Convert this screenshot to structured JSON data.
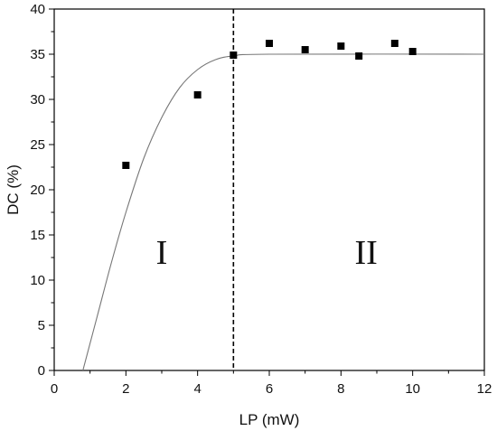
{
  "chart_data": {
    "type": "scatter",
    "xlabel": "LP (mW)",
    "ylabel": "DC (%)",
    "xlim": [
      0,
      12
    ],
    "ylim": [
      0,
      40
    ],
    "xticks": [
      0,
      2,
      4,
      6,
      8,
      10,
      12
    ],
    "yticks": [
      0,
      5,
      10,
      15,
      20,
      25,
      30,
      35,
      40
    ],
    "grid": false,
    "series": [
      {
        "marker": "square",
        "color": "#000000",
        "points": [
          {
            "x": 2,
            "y": 22.7
          },
          {
            "x": 4,
            "y": 30.5
          },
          {
            "x": 5,
            "y": 34.9
          },
          {
            "x": 6,
            "y": 36.2
          },
          {
            "x": 7,
            "y": 35.5
          },
          {
            "x": 8,
            "y": 35.9
          },
          {
            "x": 8.5,
            "y": 34.8
          },
          {
            "x": 9.5,
            "y": 36.2
          },
          {
            "x": 10,
            "y": 35.3
          }
        ]
      }
    ],
    "fit_curve": {
      "color": "#777777",
      "points": [
        {
          "x": 0.8,
          "y": 0
        },
        {
          "x": 1.2,
          "y": 6.0
        },
        {
          "x": 1.6,
          "y": 12.0
        },
        {
          "x": 2.0,
          "y": 17.5
        },
        {
          "x": 2.5,
          "y": 23.5
        },
        {
          "x": 3.0,
          "y": 28.0
        },
        {
          "x": 3.5,
          "y": 31.3
        },
        {
          "x": 4.0,
          "y": 33.3
        },
        {
          "x": 4.5,
          "y": 34.4
        },
        {
          "x": 5.0,
          "y": 34.8
        },
        {
          "x": 6.0,
          "y": 35.0
        },
        {
          "x": 12.0,
          "y": 35.0
        }
      ]
    },
    "divider": {
      "x": 5,
      "style": "dashed",
      "color": "#000000"
    },
    "regions": [
      {
        "label": "I",
        "x": 3,
        "y": 13
      },
      {
        "label": "II",
        "x": 8.7,
        "y": 13
      }
    ]
  }
}
